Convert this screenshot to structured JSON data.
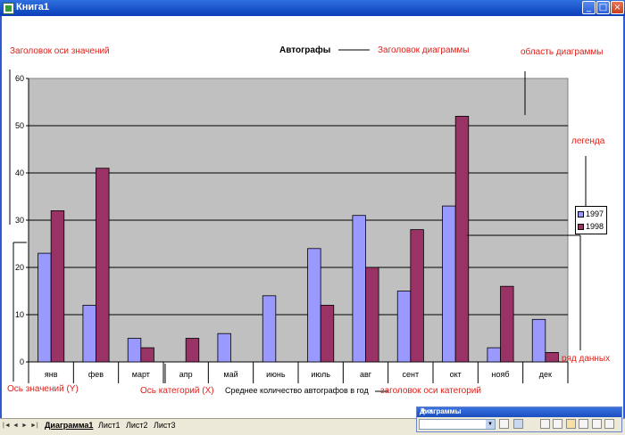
{
  "window": {
    "title": "Книга1",
    "min_label": "_",
    "max_label": "□",
    "close_label": "×"
  },
  "chart_title": "Автографы",
  "annotations": {
    "value_axis_title": "Заголовок оси значений",
    "chart_title_label": "Заголовок диаграммы",
    "chart_area": "область диаграммы",
    "legend": "легенда",
    "data_series": "ряд данных",
    "value_axis": "Ось значений (Y)",
    "category_axis": "Ось категорий (X)",
    "category_axis_title": "заголовок оси категорий"
  },
  "chart_data": {
    "type": "bar",
    "title": "Автографы",
    "xlabel": "Среднее количество автографов в год",
    "ylabel": "",
    "categories": [
      "янв",
      "фев",
      "март",
      "апр",
      "май",
      "июнь",
      "июль",
      "авг",
      "сент",
      "окт",
      "нояб",
      "дек"
    ],
    "series": [
      {
        "name": "1997",
        "values": [
          23,
          12,
          5,
          0,
          6,
          14,
          24,
          31,
          15,
          33,
          3,
          9
        ],
        "color": "#9999FF"
      },
      {
        "name": "1998",
        "values": [
          32,
          41,
          3,
          5,
          0,
          0,
          12,
          20,
          28,
          52,
          16,
          2
        ],
        "color": "#993366"
      }
    ],
    "ylim": [
      0,
      60
    ],
    "yticks": [
      0,
      10,
      20,
      30,
      40,
      50,
      60
    ],
    "plot_background": "#C0C0C0",
    "grid": true,
    "legend_position": "right"
  },
  "sheet_tabs": [
    "Диаграмма1",
    "Лист1",
    "Лист2",
    "Лист3"
  ],
  "nav_buttons": [
    "|◄",
    "◄",
    "►",
    "►|"
  ],
  "toolbar": {
    "title": "Диаграммы",
    "close_label": "▼ ×"
  }
}
